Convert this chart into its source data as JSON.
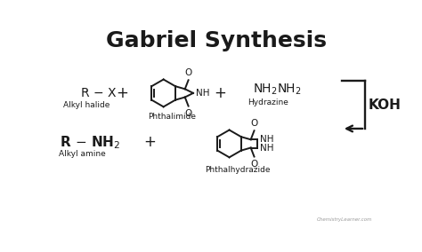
{
  "title": "Gabriel Synthesis",
  "title_fontsize": 18,
  "title_fontweight": "bold",
  "bg_color": "#ffffff",
  "text_color": "#1a1a1a",
  "fig_width": 4.74,
  "fig_height": 2.84,
  "dpi": 100,
  "watermark": "ChemistryLearner.com",
  "labels": {
    "alkyl_halide": "Alkyl halide",
    "phthalimide": "Phthalimide",
    "hydrazine": "Hydrazine",
    "koh": "KOH",
    "alkyl_amine": "Alkyl amine",
    "phthalhydrazide": "Phthalhydrazide"
  }
}
